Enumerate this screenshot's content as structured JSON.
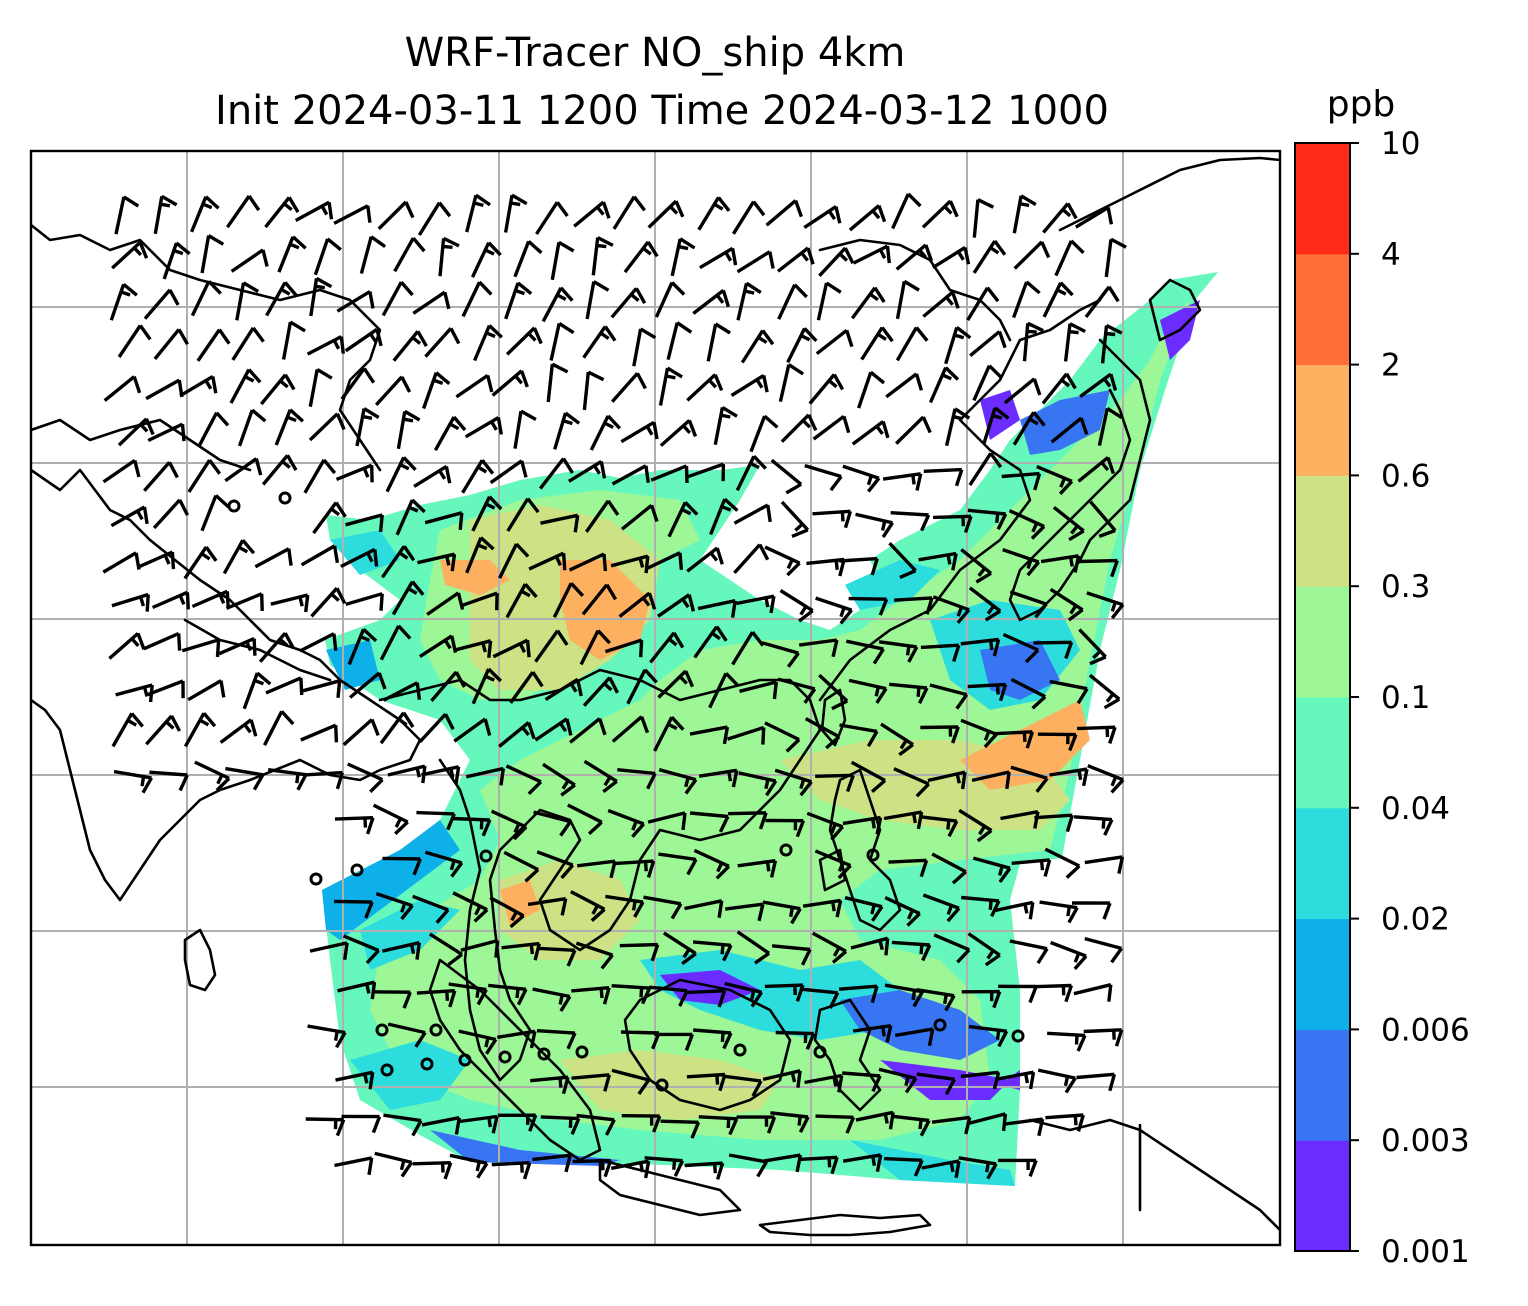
{
  "figure": {
    "title_line1": "WRF-Tracer NO_ship 4km",
    "title_line2": "Init 2024-03-11 1200 Time 2024-03-12 1000"
  },
  "colorbar": {
    "unit": "ppb",
    "levels": [
      "0.001",
      "0.003",
      "0.006",
      "0.02",
      "0.04",
      "0.1",
      "0.3",
      "0.6",
      "2",
      "4",
      "10"
    ],
    "colors": [
      "#6a2cff",
      "#3775f2",
      "#0db0e8",
      "#2ddcdc",
      "#66f7bc",
      "#9ef796",
      "#cce285",
      "#fdb060",
      "#ff7038",
      "#ff2a18"
    ]
  },
  "map": {
    "field": "NO_ship tracer concentration",
    "coastline_color": "#000000",
    "grid_color": "#b0b0b0",
    "wind_barbs": true
  }
}
